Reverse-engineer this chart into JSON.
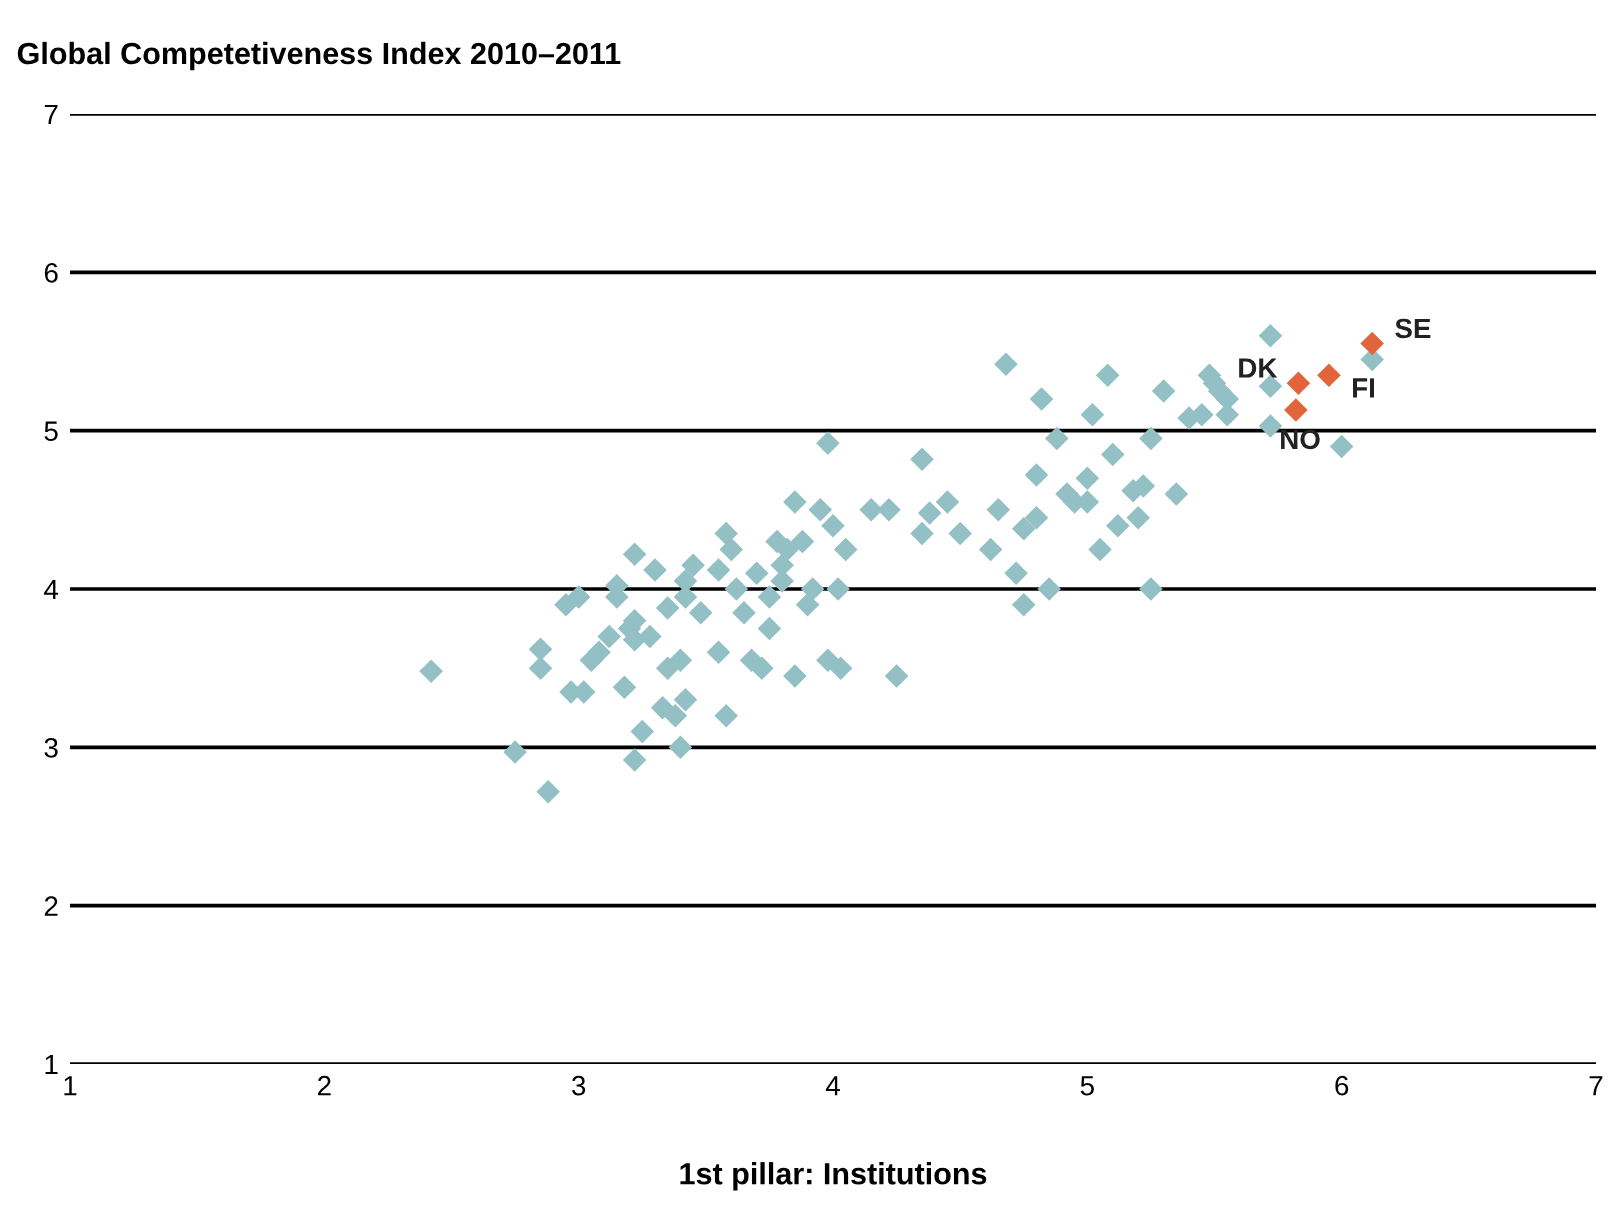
{
  "chart_data": {
    "type": "scatter",
    "title": "Global Competetiveness Index 2010–2011",
    "xlabel": "1st pillar: Institutions",
    "xlim": [
      1,
      7
    ],
    "xticks": [
      1,
      2,
      3,
      4,
      5,
      6,
      7
    ],
    "ylim": [
      1,
      7
    ],
    "yticks": [
      1,
      2,
      3,
      4,
      5,
      6,
      7
    ],
    "grid": "y",
    "marker": "diamond",
    "series": [
      {
        "color": "#93c0c4",
        "x": [
          2.42,
          2.75,
          2.88,
          2.85,
          2.85,
          2.95,
          2.97,
          3.0,
          3.02,
          3.05,
          3.08,
          3.12,
          3.15,
          3.15,
          3.18,
          3.2,
          3.22,
          3.22,
          3.22,
          3.25,
          3.22,
          3.28,
          3.3,
          3.33,
          3.35,
          3.38,
          3.35,
          3.4,
          3.42,
          3.42,
          3.42,
          3.4,
          3.45,
          3.48,
          3.55,
          3.55,
          3.58,
          3.6,
          3.58,
          3.62,
          3.65,
          3.68,
          3.7,
          3.72,
          3.75,
          3.75,
          3.78,
          3.8,
          3.8,
          3.82,
          3.85,
          3.85,
          3.88,
          3.9,
          3.92,
          3.95,
          3.98,
          3.98,
          4.0,
          4.02,
          4.03,
          4.05,
          4.15,
          4.22,
          4.25,
          4.35,
          4.35,
          4.38,
          4.45,
          4.5,
          4.62,
          4.65,
          4.68,
          4.72,
          4.75,
          4.75,
          4.8,
          4.8,
          4.82,
          4.85,
          4.88,
          4.92,
          4.95,
          5.0,
          5.0,
          5.02,
          5.05,
          5.08,
          5.1,
          5.12,
          5.18,
          5.2,
          5.22,
          5.25,
          5.25,
          5.3,
          5.35,
          5.4,
          5.45,
          5.48,
          5.5,
          5.52,
          5.55,
          5.55,
          5.72,
          5.72,
          5.72,
          6.0,
          6.12
        ],
        "values": [
          3.48,
          2.97,
          2.72,
          3.62,
          3.5,
          3.9,
          3.35,
          3.95,
          3.35,
          3.55,
          3.6,
          3.7,
          3.95,
          4.02,
          3.38,
          3.75,
          3.8,
          3.68,
          4.22,
          3.1,
          2.92,
          3.7,
          4.12,
          3.25,
          3.88,
          3.2,
          3.5,
          3.55,
          3.95,
          4.05,
          3.3,
          3.0,
          4.15,
          3.85,
          3.6,
          4.12,
          4.35,
          4.25,
          3.2,
          4.0,
          3.85,
          3.55,
          4.1,
          3.5,
          3.75,
          3.95,
          4.3,
          4.15,
          4.05,
          4.25,
          4.55,
          3.45,
          4.3,
          3.9,
          4.0,
          4.5,
          4.92,
          3.55,
          4.4,
          4.0,
          3.5,
          4.25,
          4.5,
          4.5,
          3.45,
          4.35,
          4.82,
          4.48,
          4.55,
          4.35,
          4.25,
          4.5,
          5.42,
          4.1,
          3.9,
          4.38,
          4.45,
          4.72,
          5.2,
          4.0,
          4.95,
          4.6,
          4.55,
          4.55,
          4.7,
          5.1,
          4.25,
          5.35,
          4.85,
          4.4,
          4.62,
          4.45,
          4.65,
          4.0,
          4.95,
          5.25,
          4.6,
          5.08,
          5.1,
          5.35,
          5.3,
          5.25,
          5.2,
          5.1,
          5.03,
          5.6,
          5.28,
          4.9,
          5.45
        ]
      },
      {
        "color": "#e2643a",
        "x": [
          5.83,
          5.95,
          6.12,
          5.82
        ],
        "values": [
          5.3,
          5.35,
          5.55,
          5.13
        ]
      }
    ],
    "annotations": [
      {
        "text": "DK",
        "x": 5.83,
        "y": 5.3
      },
      {
        "text": "FI",
        "x": 5.95,
        "y": 5.35
      },
      {
        "text": "SE",
        "x": 6.12,
        "y": 5.55
      },
      {
        "text": "NO",
        "x": 5.82,
        "y": 5.13
      }
    ]
  }
}
